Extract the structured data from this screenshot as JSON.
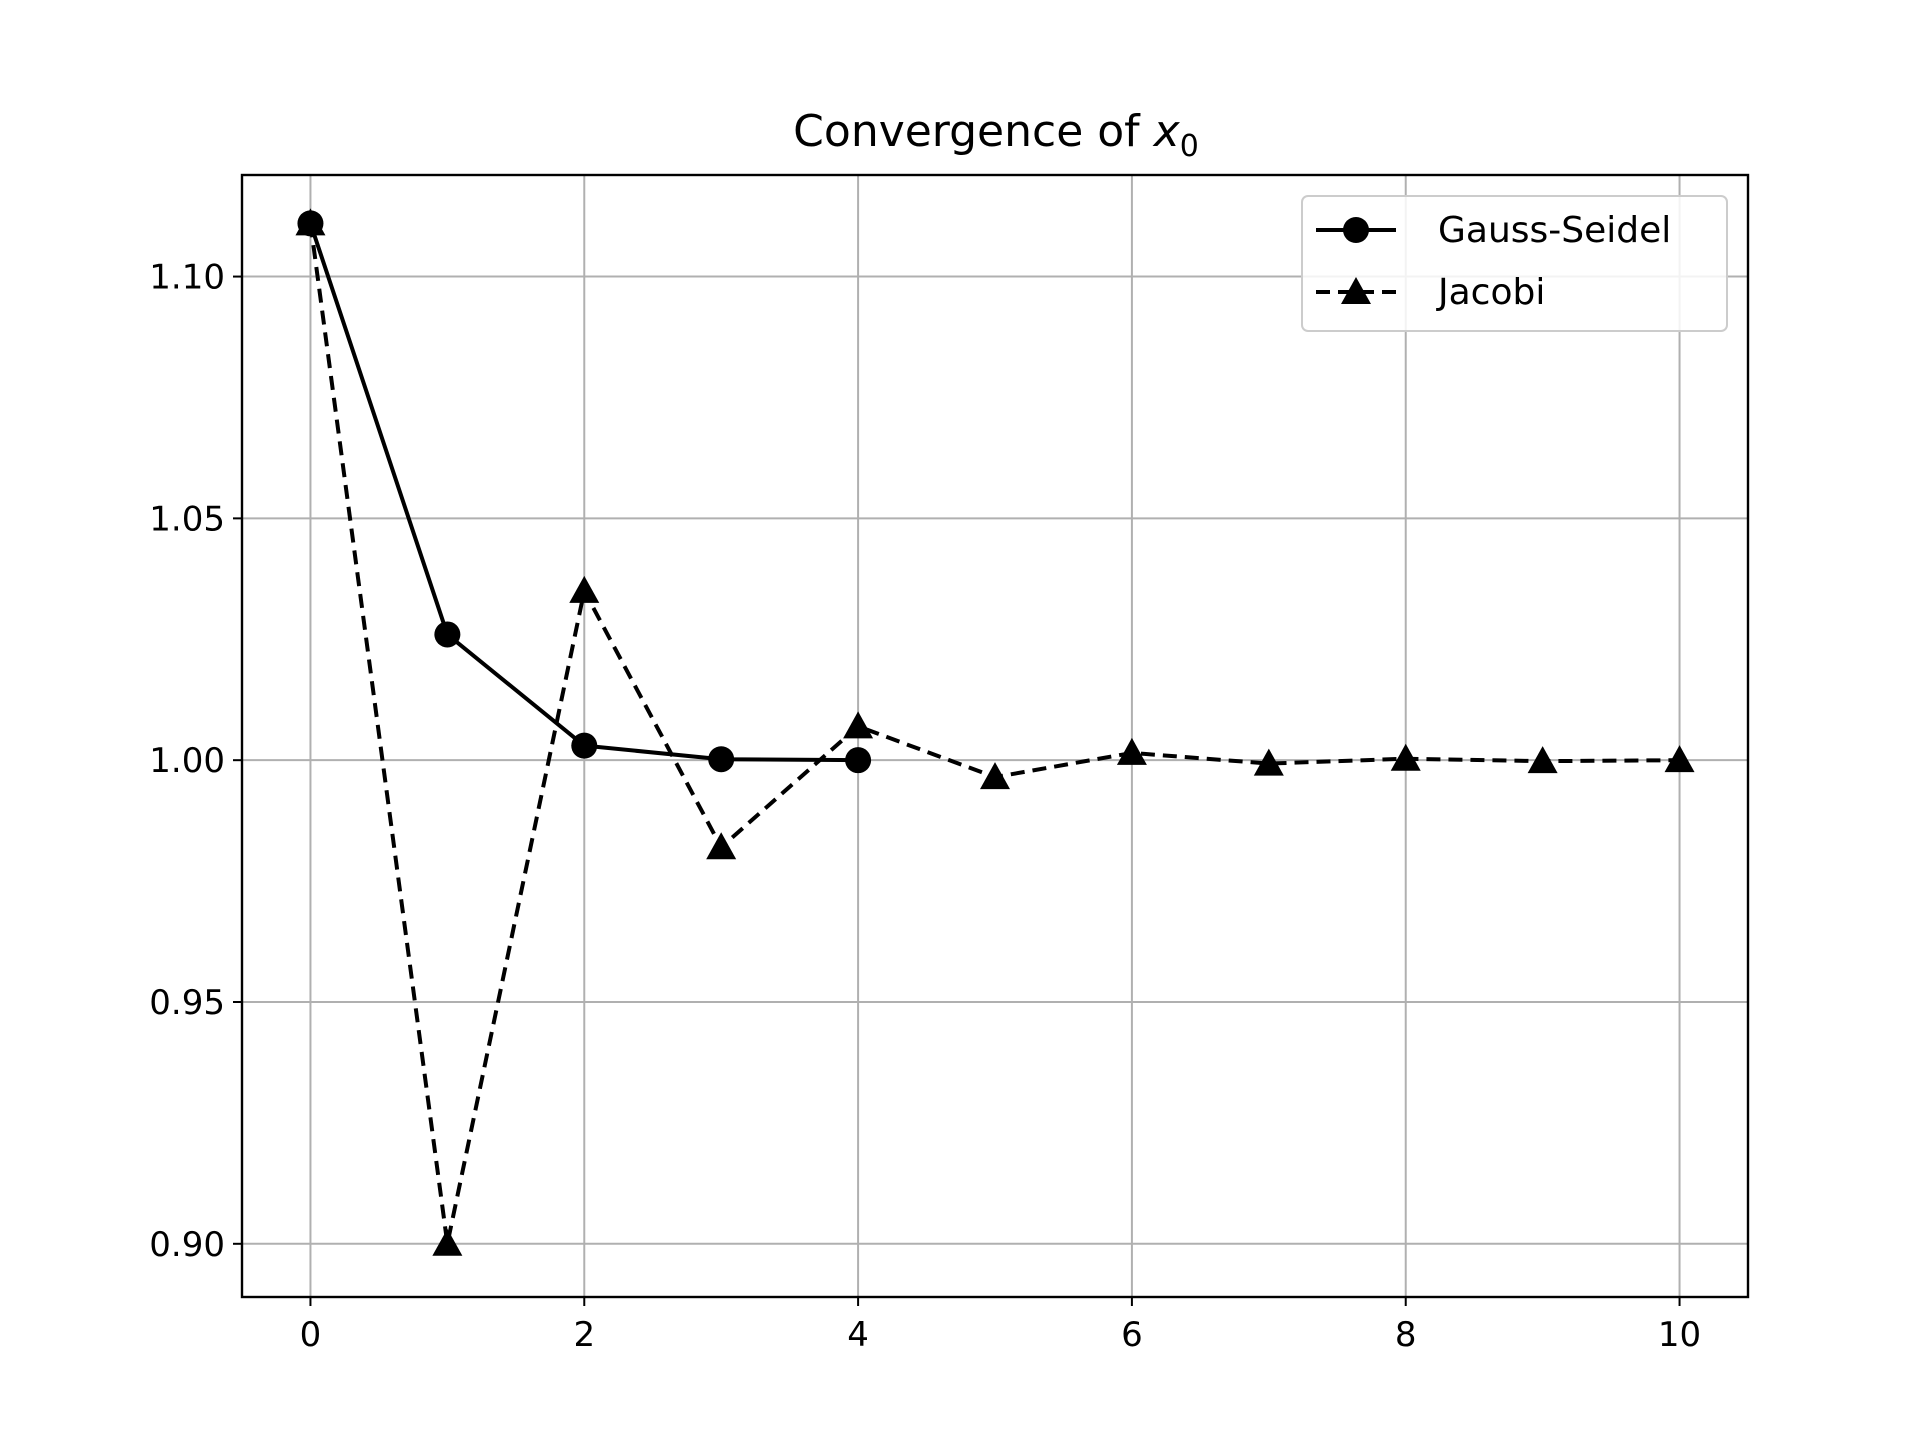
{
  "chart_data": {
    "type": "line",
    "title_main": "Convergence of ",
    "title_var": "x",
    "title_sub": "0",
    "xlabel": "",
    "ylabel": "",
    "xlim": [
      -0.5,
      10.5
    ],
    "ylim": [
      0.889,
      1.121
    ],
    "xticks": [
      0,
      2,
      4,
      6,
      8,
      10
    ],
    "xtick_labels": [
      "0",
      "2",
      "4",
      "6",
      "8",
      "10"
    ],
    "yticks": [
      0.9,
      0.95,
      1.0,
      1.05,
      1.1
    ],
    "ytick_labels": [
      "0.90",
      "0.95",
      "1.00",
      "1.05",
      "1.10"
    ],
    "grid": true,
    "legend_position": "top-right",
    "series": [
      {
        "name": "Gauss-Seidel",
        "marker": "circle",
        "linestyle": "solid",
        "color": "#000000",
        "x": [
          0,
          1,
          2,
          3,
          4
        ],
        "y": [
          1.111,
          1.026,
          1.003,
          1.0002,
          1.0
        ]
      },
      {
        "name": "Jacobi",
        "marker": "triangle",
        "linestyle": "dashed",
        "color": "#000000",
        "x": [
          0,
          1,
          2,
          3,
          4,
          5,
          6,
          7,
          8,
          9,
          10
        ],
        "y": [
          1.111,
          0.9,
          1.035,
          0.982,
          1.007,
          0.9965,
          1.0015,
          0.9993,
          1.0003,
          0.9998,
          1.0
        ]
      }
    ]
  }
}
